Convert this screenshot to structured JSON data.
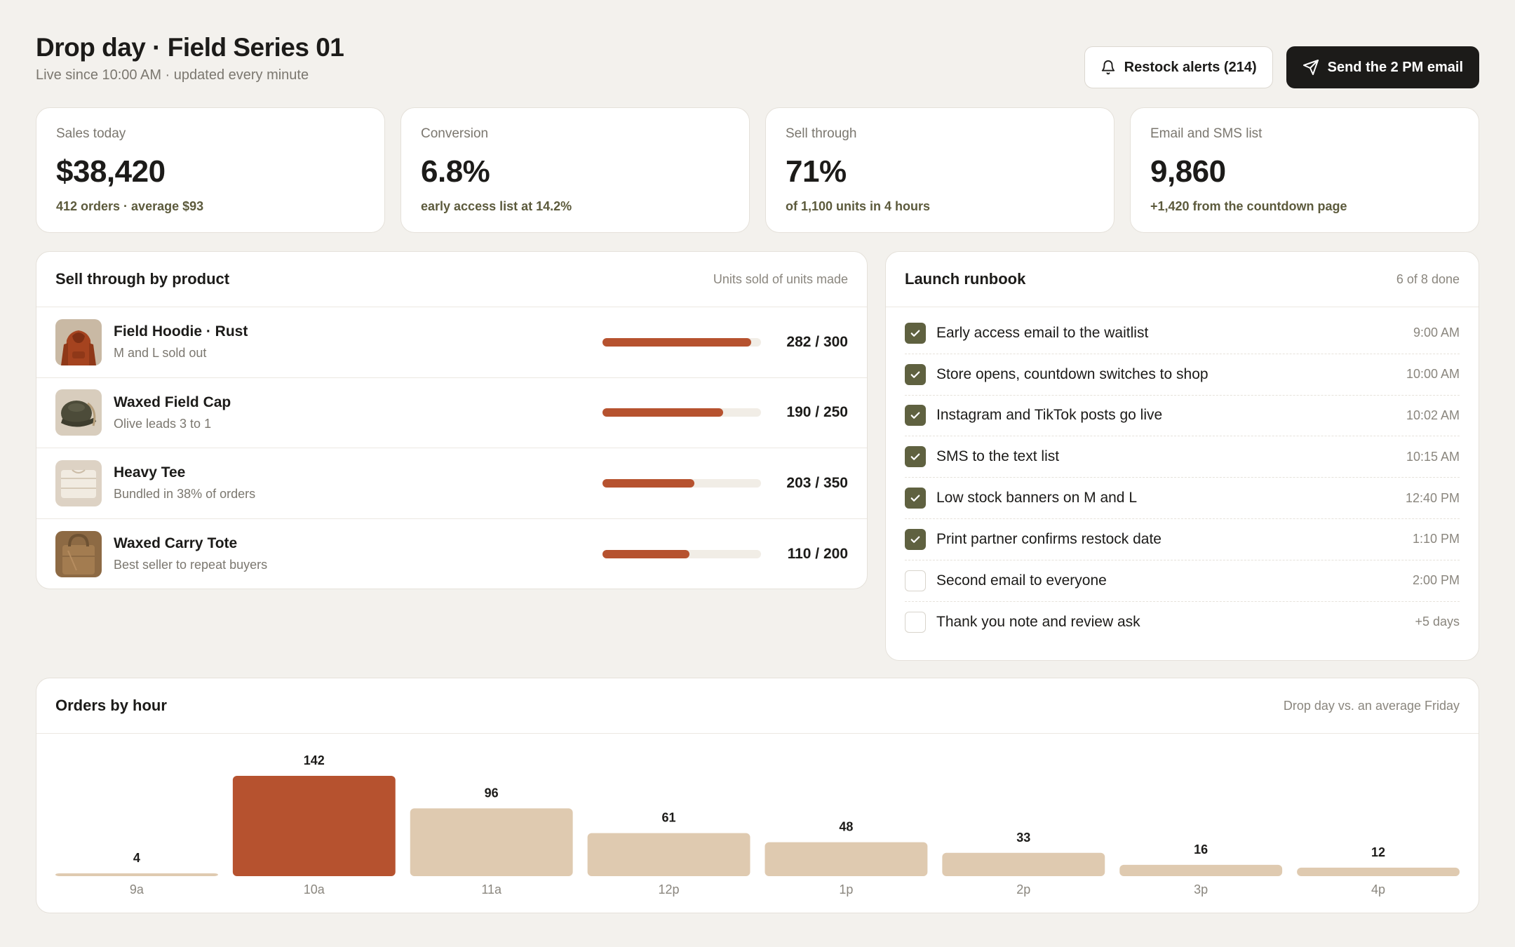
{
  "header": {
    "title": "Drop day · Field Series 01",
    "subtitle": "Live since 10:00 AM · updated every minute",
    "restock_label": "Restock alerts (214)",
    "send_label": "Send the 2 PM email"
  },
  "stats": [
    {
      "label": "Sales today",
      "value": "$38,420",
      "note": "412 orders · average $93"
    },
    {
      "label": "Conversion",
      "value": "6.8%",
      "note": "early access list at 14.2%"
    },
    {
      "label": "Sell through",
      "value": "71%",
      "note": "of 1,100 units in 4 hours"
    },
    {
      "label": "Email and SMS list",
      "value": "9,860",
      "note": "+1,420 from the countdown page"
    }
  ],
  "products": {
    "title": "Sell through by product",
    "meta": "Units sold of units made",
    "items": [
      {
        "name": "Field Hoodie · Rust",
        "sub": "M and L sold out",
        "count": "282 / 300",
        "sold": 282,
        "made": 300,
        "thumb": "hoodie"
      },
      {
        "name": "Waxed Field Cap",
        "sub": "Olive leads 3 to 1",
        "count": "190 / 250",
        "sold": 190,
        "made": 250,
        "thumb": "cap"
      },
      {
        "name": "Heavy Tee",
        "sub": "Bundled in 38% of orders",
        "count": "203 / 350",
        "sold": 203,
        "made": 350,
        "thumb": "tee"
      },
      {
        "name": "Waxed Carry Tote",
        "sub": "Best seller to repeat buyers",
        "count": "110 / 200",
        "sold": 110,
        "made": 200,
        "thumb": "tote"
      }
    ]
  },
  "runbook": {
    "title": "Launch runbook",
    "meta": "6 of 8 done",
    "items": [
      {
        "label": "Early access email to the waitlist",
        "time": "9:00 AM",
        "done": true
      },
      {
        "label": "Store opens, countdown switches to shop",
        "time": "10:00 AM",
        "done": true
      },
      {
        "label": "Instagram and TikTok posts go live",
        "time": "10:02 AM",
        "done": true
      },
      {
        "label": "SMS to the text list",
        "time": "10:15 AM",
        "done": true
      },
      {
        "label": "Low stock banners on M and L",
        "time": "12:40 PM",
        "done": true
      },
      {
        "label": "Print partner confirms restock date",
        "time": "1:10 PM",
        "done": true
      },
      {
        "label": "Second email to everyone",
        "time": "2:00 PM",
        "done": false
      },
      {
        "label": "Thank you note and review ask",
        "time": "+5 days",
        "done": false
      }
    ]
  },
  "orders": {
    "title": "Orders by hour",
    "meta": "Drop day vs. an average Friday"
  },
  "colors": {
    "accent": "#b6522f",
    "bar_muted": "#dfcab0",
    "check": "#5f6140"
  },
  "chart_data": {
    "type": "bar",
    "categories": [
      "9a",
      "10a",
      "11a",
      "12p",
      "1p",
      "2p",
      "3p",
      "4p"
    ],
    "values": [
      4,
      142,
      96,
      61,
      48,
      33,
      16,
      12
    ],
    "highlight_index": 1,
    "title": "Orders by hour",
    "xlabel": "",
    "ylabel": ""
  }
}
